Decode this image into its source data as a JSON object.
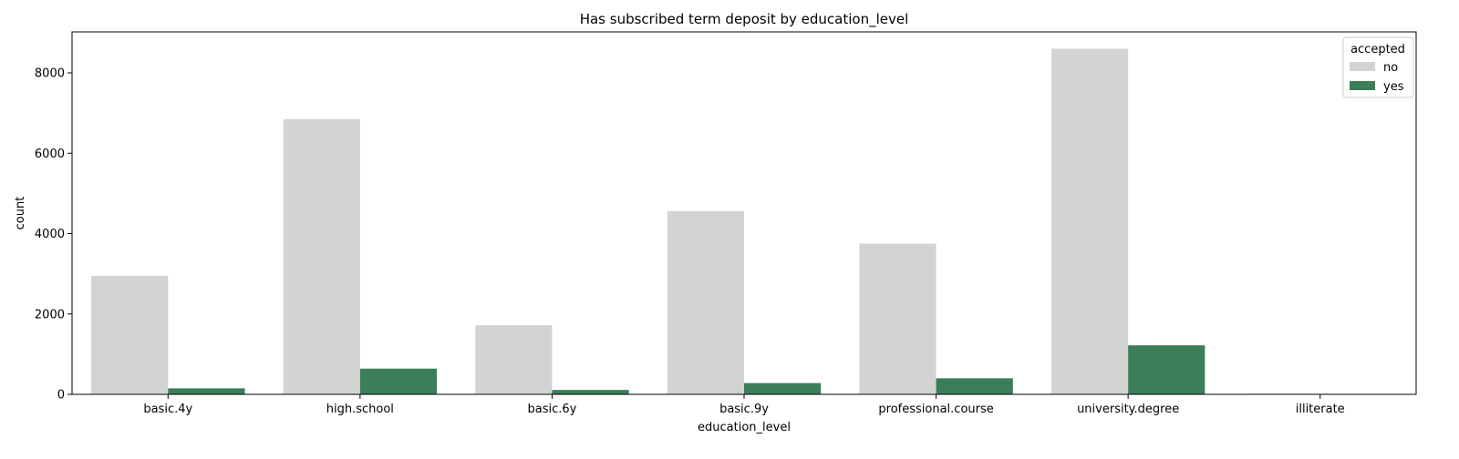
{
  "chart_data": {
    "type": "bar",
    "title": "Has subscribed term deposit by education_level",
    "xlabel": "education_level",
    "ylabel": "count",
    "categories": [
      "basic.4y",
      "high.school",
      "basic.6y",
      "basic.9y",
      "professional.course",
      "university.degree",
      "illiterate"
    ],
    "series": [
      {
        "name": "no",
        "color": "#d3d3d3",
        "values": [
          2950,
          6850,
          1720,
          4560,
          3750,
          8600,
          14
        ]
      },
      {
        "name": "yes",
        "color": "#3a7f58",
        "values": [
          150,
          640,
          110,
          280,
          400,
          1220,
          4
        ]
      }
    ],
    "ylim": [
      0,
      9020
    ],
    "yticks": [
      0,
      2000,
      4000,
      6000,
      8000
    ],
    "grid": false,
    "legend": {
      "title": "accepted",
      "position": "top-right"
    }
  }
}
